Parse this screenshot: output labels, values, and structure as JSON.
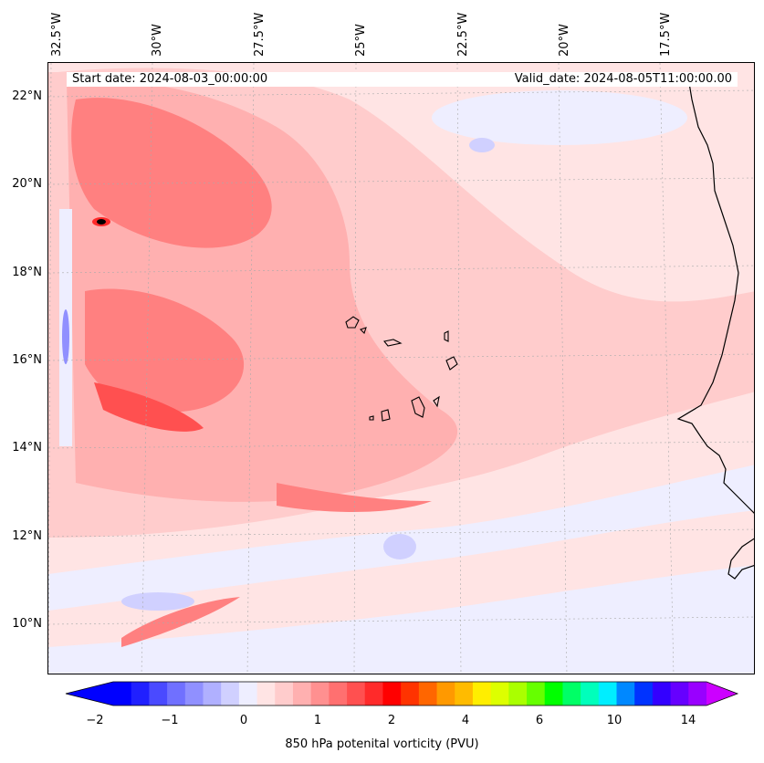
{
  "map": {
    "start_date_text": "Start date: 2024-08-03_00:00:00",
    "valid_date_text": "Valid_date: 2024-08-05T11:00:00.00",
    "lon_labels": [
      "32.5°W",
      "30°W",
      "27.5°W",
      "25°W",
      "22.5°W",
      "20°W",
      "17.5°W"
    ],
    "lat_labels": [
      "22°N",
      "20°N",
      "18°N",
      "16°N",
      "14°N",
      "12°N",
      "10°N"
    ]
  },
  "colorbar": {
    "label": "850 hPa potenital vorticity (PVU)",
    "tick_labels": [
      "−2",
      "−1",
      "0",
      "1",
      "2",
      "4",
      "6",
      "10",
      "14"
    ],
    "colors": [
      "#0000ff",
      "#2020ff",
      "#4a4aff",
      "#7070ff",
      "#9090ff",
      "#b0b0ff",
      "#d0d0ff",
      "#eeeeff",
      "#ffe4e4",
      "#ffcccc",
      "#ffb0b0",
      "#ff9090",
      "#ff7070",
      "#ff5050",
      "#ff2a2a",
      "#ff0000",
      "#ff3300",
      "#ff6600",
      "#ff9900",
      "#ffbb00",
      "#ffee00",
      "#ddff00",
      "#aaff00",
      "#66ff00",
      "#00ff00",
      "#00ff66",
      "#00ffbb",
      "#00eeff",
      "#0088ff",
      "#0033ff",
      "#3300ff",
      "#6600ff",
      "#9900ff"
    ],
    "under_color": "#0000ff",
    "over_color": "#cc00ff"
  },
  "colors": {
    "background_pink": "#ffe4e4",
    "light_blue": "#eeeeff",
    "medium_blue": "#d0d0ff",
    "pink": "#ffcccc",
    "rose": "#ffb0b0",
    "red": "#ff8080",
    "coast": "#000000"
  }
}
